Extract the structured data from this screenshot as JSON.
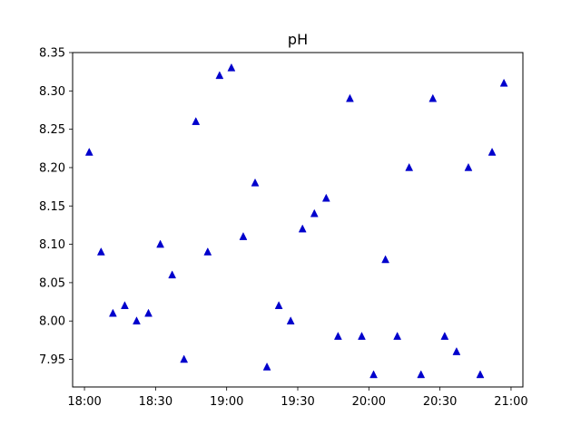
{
  "chart_data": {
    "type": "scatter",
    "title": "pH",
    "xlabel": "",
    "ylabel": "",
    "marker": "triangle-up",
    "marker_color": "#0000cc",
    "x_ticks": [
      "18:00",
      "18:30",
      "19:00",
      "19:30",
      "20:00",
      "20:30",
      "21:00"
    ],
    "y_ticks": [
      "7.95",
      "8.00",
      "8.05",
      "8.10",
      "8.15",
      "8.20",
      "8.25",
      "8.30",
      "8.35"
    ],
    "xlim": [
      "17:55",
      "21:05"
    ],
    "ylim": [
      7.914,
      8.35
    ],
    "grid": false,
    "series": [
      {
        "x": [
          "18:02",
          "18:07",
          "18:12",
          "18:17",
          "18:22",
          "18:27",
          "18:32",
          "18:37",
          "18:42",
          "18:47",
          "18:52",
          "18:57",
          "19:02",
          "19:07",
          "19:12",
          "19:17",
          "19:22",
          "19:27",
          "19:32",
          "19:37",
          "19:42",
          "19:47",
          "19:52",
          "19:57",
          "20:02",
          "20:07",
          "20:12",
          "20:17",
          "20:22",
          "20:27",
          "20:32",
          "20:37",
          "20:42",
          "20:47",
          "20:52",
          "20:57"
        ],
        "y": [
          8.22,
          8.09,
          8.01,
          8.02,
          8.0,
          8.01,
          8.1,
          8.06,
          7.95,
          8.26,
          8.09,
          8.32,
          8.33,
          8.11,
          8.18,
          7.94,
          8.02,
          8.0,
          8.12,
          8.14,
          8.16,
          7.98,
          8.29,
          7.98,
          7.93,
          8.08,
          7.98,
          8.2,
          7.93,
          8.29,
          7.98,
          7.96,
          8.2,
          7.93,
          8.22,
          8.31
        ]
      }
    ]
  }
}
